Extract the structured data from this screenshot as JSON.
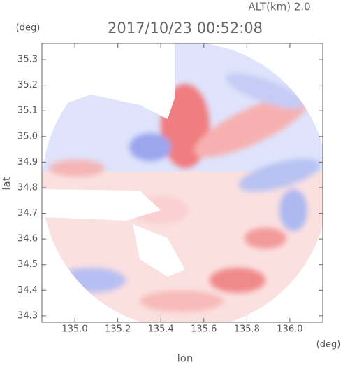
{
  "chart_data": {
    "type": "radar",
    "alt_label": "ALT(km) 2.0",
    "title": "2017/10/23 00:52:08",
    "y_unit": "(deg)",
    "x_unit": "(deg)",
    "ylabel": "lat",
    "xlabel": "lon",
    "xlim": [
      134.847,
      136.153
    ],
    "ylim": [
      34.275,
      35.363
    ],
    "xticks": [
      {
        "value": 135,
        "label": "135.0"
      },
      135.2,
      135.4,
      135.6,
      135.8,
      {
        "value": 136,
        "label": "136.0"
      }
    ],
    "yticks": [
      34.3,
      34.4,
      34.5,
      34.6,
      34.7,
      34.8,
      34.9,
      {
        "value": 35,
        "label": "35.0"
      },
      35.1,
      35.2,
      35.3
    ]
  }
}
